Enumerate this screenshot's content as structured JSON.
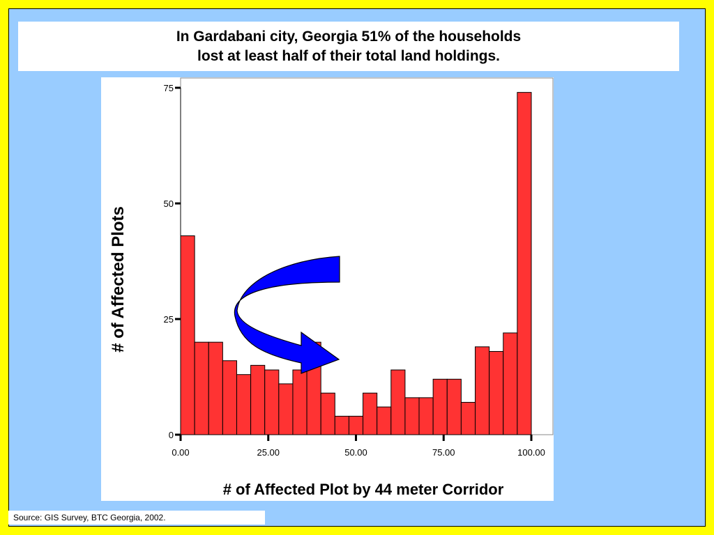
{
  "title": {
    "line1": "In Gardabani city, Georgia 51% of the households",
    "line2": "lost at least half of their total land holdings."
  },
  "source": "Source: GIS Survey, BTC Georgia, 2002.",
  "colors": {
    "bar": "#ff3333",
    "arrow": "#0000ff",
    "slide_background": "#99ccff",
    "frame": "#ffff00"
  },
  "chart_data": {
    "type": "bar",
    "title": "",
    "xlabel": "# of Affected Plot by 44 meter Corridor",
    "ylabel": "# of Affected Plots",
    "ylim": [
      0,
      75
    ],
    "xlim": [
      0,
      100
    ],
    "bin_width": 4,
    "y_ticks": [
      0,
      25,
      50,
      75
    ],
    "y_tick_labels": [
      "0",
      "25",
      "50",
      "75"
    ],
    "x_ticks": [
      0,
      25,
      50,
      75,
      100
    ],
    "x_tick_labels": [
      "0.00",
      "25.00",
      "50.00",
      "75.00",
      "100.00"
    ],
    "bins_start": [
      0,
      4,
      8,
      12,
      16,
      20,
      24,
      28,
      32,
      36,
      40,
      44,
      48,
      52,
      56,
      60,
      64,
      68,
      72,
      76,
      80,
      84,
      88,
      92,
      96
    ],
    "values": [
      43,
      20,
      20,
      16,
      13,
      15,
      14,
      11,
      14,
      20,
      9,
      4,
      4,
      9,
      6,
      14,
      8,
      8,
      12,
      12,
      7,
      19,
      18,
      22,
      74
    ],
    "grid": false,
    "legend": "none",
    "annotation": "curved-arrow-icon"
  }
}
